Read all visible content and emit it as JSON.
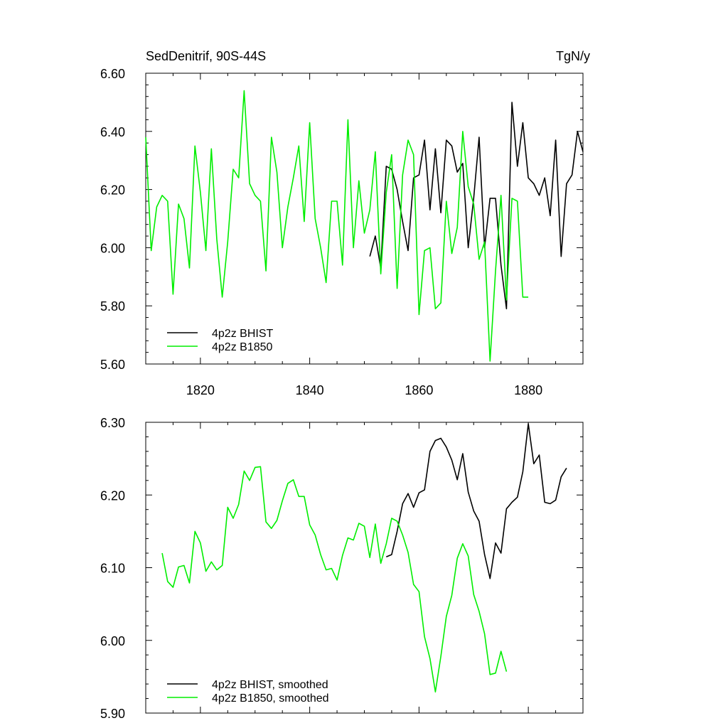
{
  "header": {
    "left": "SedDenitrif, 90S-44S",
    "right": "TgN/y"
  },
  "colors": {
    "bhist": "#000000",
    "b1850": "#00ee00"
  },
  "chart_data": [
    {
      "type": "line",
      "xlim": [
        1810,
        1890
      ],
      "ylim": [
        5.6,
        6.6
      ],
      "xticks": [
        1820,
        1840,
        1860,
        1880
      ],
      "xtick_labels": [
        "1820",
        "1840",
        "1860",
        "1880"
      ],
      "yticks": [
        5.6,
        5.8,
        6.0,
        6.2,
        6.4,
        6.6
      ],
      "ytick_labels": [
        "5.60",
        "5.80",
        "6.00",
        "6.20",
        "6.40",
        "6.60"
      ],
      "legend_position": "bottom-left",
      "series": [
        {
          "name": "4p2z BHIST",
          "color": "#000000",
          "x": [
            1851,
            1852,
            1853,
            1854,
            1855,
            1856,
            1857,
            1858,
            1859,
            1860,
            1861,
            1862,
            1863,
            1864,
            1865,
            1866,
            1867,
            1868,
            1869,
            1870,
            1871,
            1872,
            1873,
            1874,
            1875,
            1876,
            1877,
            1878,
            1879,
            1880,
            1881,
            1882,
            1883,
            1884,
            1885,
            1886,
            1887,
            1888,
            1889,
            1890
          ],
          "y": [
            5.97,
            6.04,
            5.93,
            6.28,
            6.27,
            6.2,
            6.09,
            5.99,
            6.24,
            6.25,
            6.37,
            6.13,
            6.34,
            6.12,
            6.37,
            6.35,
            6.26,
            6.29,
            6.0,
            6.17,
            6.38,
            6.0,
            6.17,
            6.17,
            5.94,
            5.79,
            6.5,
            6.28,
            6.43,
            6.24,
            6.22,
            6.18,
            6.24,
            6.11,
            6.37,
            5.97,
            6.22,
            6.25,
            6.4,
            6.33
          ]
        },
        {
          "name": "4p2z B1850",
          "color": "#00ee00",
          "x": [
            1810,
            1811,
            1812,
            1813,
            1814,
            1815,
            1816,
            1817,
            1818,
            1819,
            1820,
            1821,
            1822,
            1823,
            1824,
            1825,
            1826,
            1827,
            1828,
            1829,
            1830,
            1831,
            1832,
            1833,
            1834,
            1835,
            1836,
            1837,
            1838,
            1839,
            1840,
            1841,
            1842,
            1843,
            1844,
            1845,
            1846,
            1847,
            1848,
            1849,
            1850,
            1851,
            1852,
            1853,
            1854,
            1855,
            1856,
            1857,
            1858,
            1859,
            1860,
            1861,
            1862,
            1863,
            1864,
            1865,
            1866,
            1867,
            1868,
            1869,
            1870,
            1871,
            1872,
            1873,
            1874,
            1875,
            1876,
            1877,
            1878,
            1879,
            1880
          ],
          "y": [
            6.38,
            5.99,
            6.14,
            6.18,
            6.16,
            5.84,
            6.15,
            6.1,
            5.93,
            6.35,
            6.19,
            5.99,
            6.34,
            6.03,
            5.83,
            6.02,
            6.27,
            6.24,
            6.54,
            6.22,
            6.18,
            6.16,
            5.92,
            6.38,
            6.26,
            6.0,
            6.14,
            6.24,
            6.35,
            6.09,
            6.43,
            6.1,
            6.0,
            5.88,
            6.16,
            6.16,
            5.94,
            6.44,
            6.0,
            6.23,
            6.05,
            6.13,
            6.33,
            5.91,
            6.19,
            6.32,
            5.86,
            6.25,
            6.37,
            6.32,
            5.77,
            5.99,
            6.0,
            5.79,
            5.81,
            6.16,
            5.98,
            6.07,
            6.4,
            6.21,
            6.15,
            5.96,
            6.02,
            5.61,
            5.92,
            6.18,
            5.82,
            6.17,
            6.16,
            5.83,
            5.83
          ]
        }
      ]
    },
    {
      "type": "line",
      "xlim": [
        1810,
        1890
      ],
      "ylim": [
        5.9,
        6.3
      ],
      "xticks": [
        1820,
        1840,
        1860,
        1880
      ],
      "yticks": [
        5.9,
        6.0,
        6.1,
        6.2,
        6.3
      ],
      "ytick_labels": [
        "5.90",
        "6.00",
        "6.10",
        "6.20",
        "6.30"
      ],
      "legend_position": "bottom-left",
      "series": [
        {
          "name": "4p2z BHIST, smoothed",
          "color": "#000000",
          "x": [
            1854,
            1855,
            1856,
            1857,
            1858,
            1859,
            1860,
            1861,
            1862,
            1863,
            1864,
            1865,
            1866,
            1867,
            1868,
            1869,
            1870,
            1871,
            1872,
            1873,
            1874,
            1875,
            1876,
            1877,
            1878,
            1879,
            1880,
            1881,
            1882,
            1883,
            1884,
            1885,
            1886,
            1887
          ],
          "y": [
            6.115,
            6.118,
            6.15,
            6.188,
            6.202,
            6.183,
            6.203,
            6.207,
            6.26,
            6.275,
            6.278,
            6.266,
            6.248,
            6.221,
            6.257,
            6.204,
            6.178,
            6.164,
            6.118,
            6.085,
            6.134,
            6.12,
            6.181,
            6.19,
            6.197,
            6.232,
            6.298,
            6.243,
            6.255,
            6.19,
            6.188,
            6.193,
            6.225,
            6.237
          ]
        },
        {
          "name": "4p2z B1850, smoothed",
          "color": "#00ee00",
          "x": [
            1813,
            1814,
            1815,
            1816,
            1817,
            1818,
            1819,
            1820,
            1821,
            1822,
            1823,
            1824,
            1825,
            1826,
            1827,
            1828,
            1829,
            1830,
            1831,
            1832,
            1833,
            1834,
            1835,
            1836,
            1837,
            1838,
            1839,
            1840,
            1841,
            1842,
            1843,
            1844,
            1845,
            1846,
            1847,
            1848,
            1849,
            1850,
            1851,
            1852,
            1853,
            1854,
            1855,
            1856,
            1857,
            1858,
            1859,
            1860,
            1861,
            1862,
            1863,
            1864,
            1865,
            1866,
            1867,
            1868,
            1869,
            1870,
            1871,
            1872,
            1873,
            1874,
            1875,
            1876
          ],
          "y": [
            6.12,
            6.081,
            6.073,
            6.101,
            6.103,
            6.079,
            6.15,
            6.134,
            6.095,
            6.108,
            6.097,
            6.103,
            6.183,
            6.168,
            6.187,
            6.233,
            6.22,
            6.238,
            6.239,
            6.163,
            6.154,
            6.165,
            6.192,
            6.216,
            6.221,
            6.198,
            6.198,
            6.159,
            6.145,
            6.118,
            6.097,
            6.099,
            6.083,
            6.117,
            6.141,
            6.138,
            6.161,
            6.157,
            6.114,
            6.16,
            6.106,
            6.133,
            6.168,
            6.164,
            6.145,
            6.121,
            6.077,
            6.067,
            6.005,
            5.975,
            5.929,
            5.978,
            6.033,
            6.062,
            6.113,
            6.133,
            6.116,
            6.063,
            6.04,
            6.009,
            5.953,
            5.955,
            5.985,
            5.957
          ]
        }
      ]
    }
  ]
}
